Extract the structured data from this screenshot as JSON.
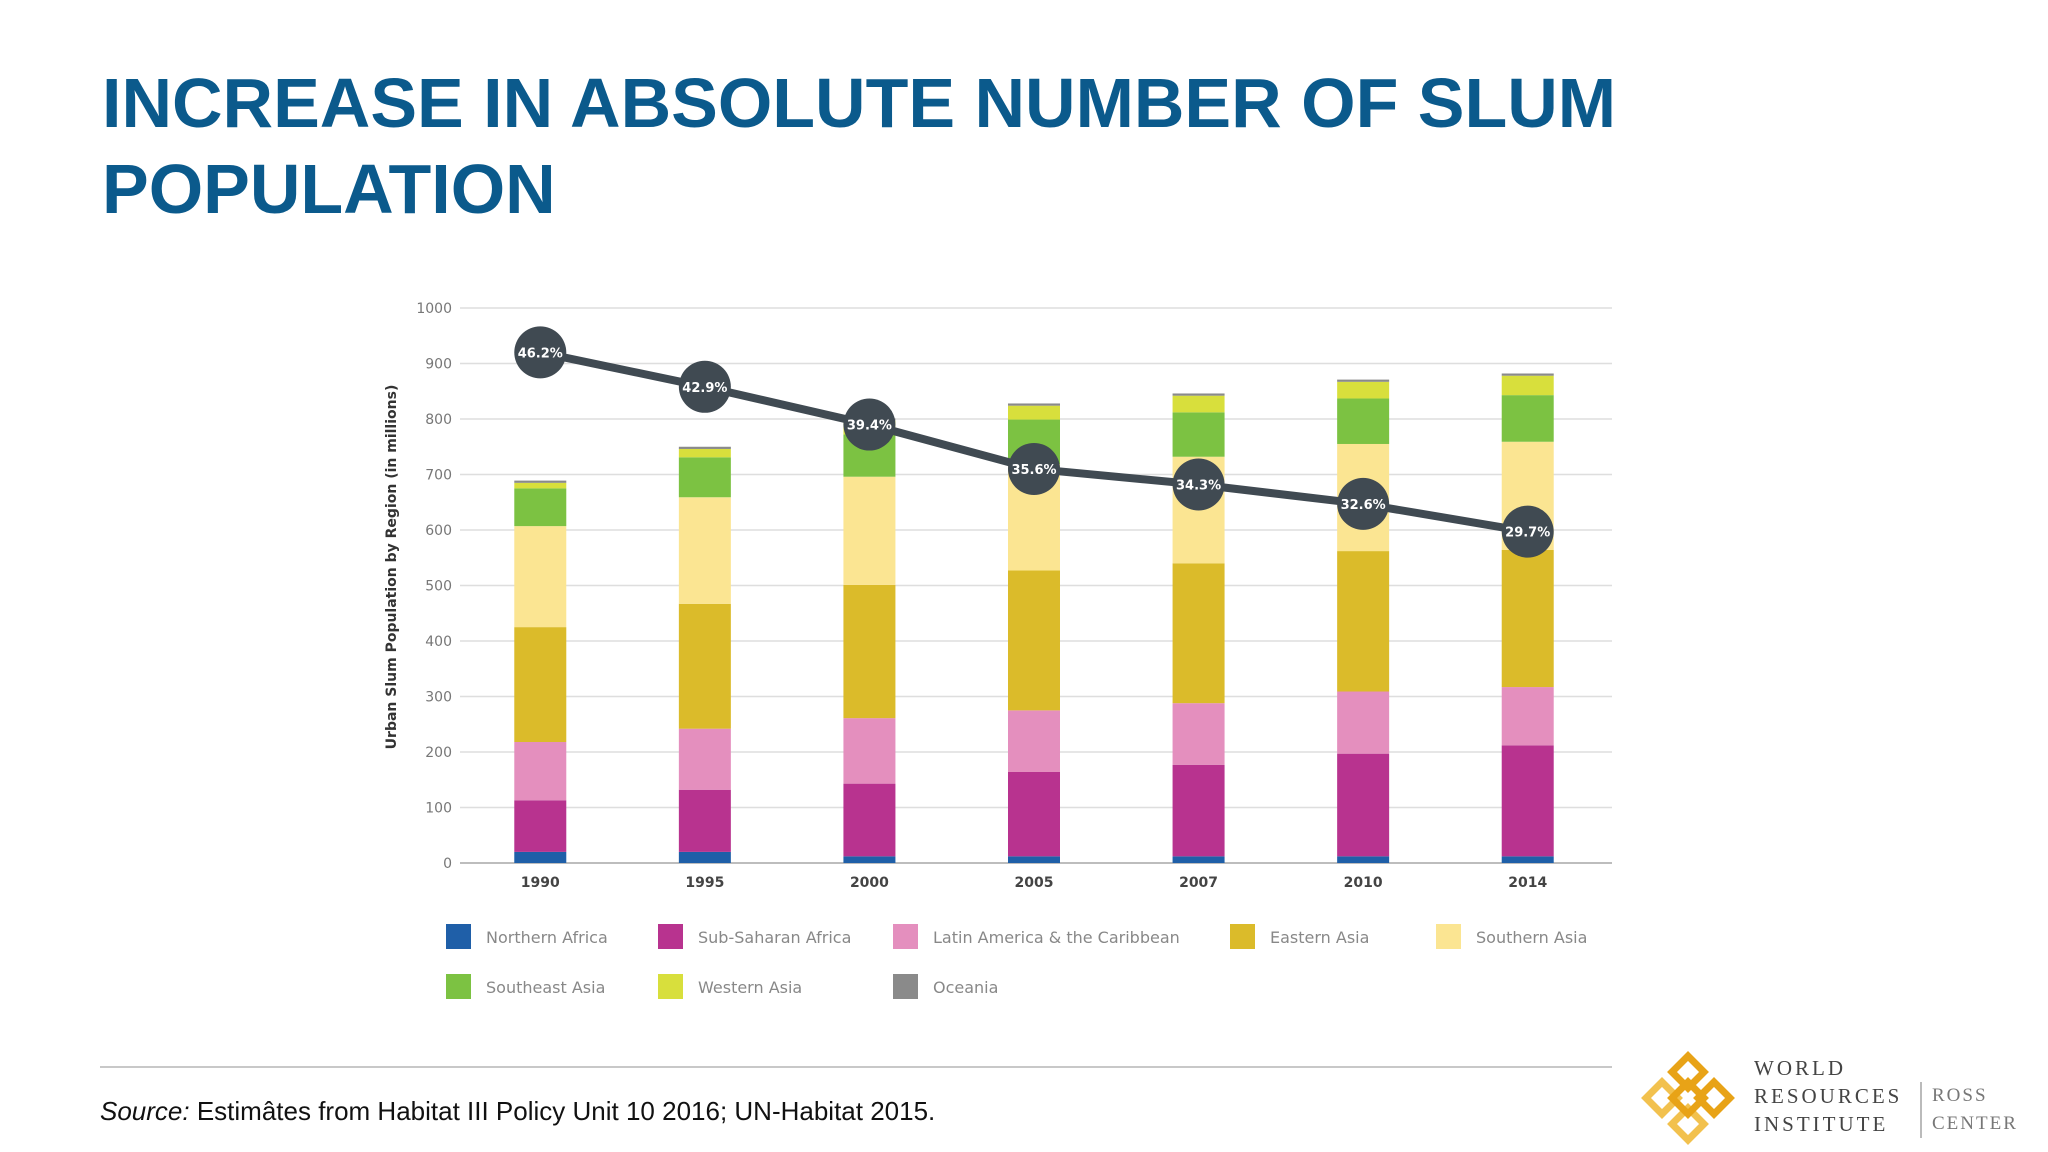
{
  "slide": {
    "title": "INCREASE IN ABSOLUTE NUMBER OF SLUM POPULATION",
    "source_label": "Source:",
    "source_text": " Estimâtes from Habitat III Policy Unit 10 2016; UN-Habitat 2015."
  },
  "logo": {
    "org_lines": [
      "WORLD",
      "RESOURCES",
      "INSTITUTE"
    ],
    "center_lines": [
      "ROSS",
      "CENTER"
    ],
    "colors": [
      "#e8a317",
      "#f2c14e"
    ]
  },
  "chart_data": {
    "type": "bar",
    "stacked": true,
    "categories": [
      "1990",
      "1995",
      "2000",
      "2005",
      "2007",
      "2010",
      "2014"
    ],
    "ylabel": "Urban Slum Population by Region (in millions)",
    "ylim": [
      0,
      1000
    ],
    "yticks": [
      0,
      100,
      200,
      300,
      400,
      500,
      600,
      700,
      800,
      900,
      1000
    ],
    "grid": true,
    "legend_position": "bottom",
    "series": [
      {
        "name": "Northern Africa",
        "color": "#1f5fa8",
        "values": [
          20,
          20,
          12,
          12,
          12,
          12,
          12
        ]
      },
      {
        "name": "Sub-Saharan Africa",
        "color": "#b8338f",
        "values": [
          93,
          112,
          131,
          152,
          165,
          185,
          200
        ]
      },
      {
        "name": "Latin America & the Caribbean",
        "color": "#e48fbe",
        "values": [
          105,
          110,
          118,
          111,
          111,
          112,
          105
        ]
      },
      {
        "name": "Eastern Asia",
        "color": "#dbbb2a",
        "values": [
          207,
          225,
          240,
          252,
          252,
          253,
          247
        ]
      },
      {
        "name": "Southern Asia",
        "color": "#fbe592",
        "values": [
          182,
          192,
          195,
          192,
          192,
          193,
          195
        ]
      },
      {
        "name": "Southeast Asia",
        "color": "#7cc242",
        "values": [
          68,
          72,
          76,
          80,
          80,
          82,
          84
        ]
      },
      {
        "name": "Western Asia",
        "color": "#d8df3c",
        "values": [
          10,
          15,
          25,
          25,
          30,
          30,
          35
        ]
      },
      {
        "name": "Oceania",
        "color": "#8a8a8a",
        "values": [
          4,
          4,
          4,
          4,
          4,
          4,
          4
        ]
      }
    ],
    "line_series": {
      "color": "#404a52",
      "y_positions": [
        920,
        858,
        790,
        710,
        682,
        647,
        597
      ],
      "labels": [
        "46.2%",
        "42.9%",
        "39.4%",
        "35.6%",
        "34.3%",
        "32.6%",
        "29.7%"
      ]
    }
  }
}
